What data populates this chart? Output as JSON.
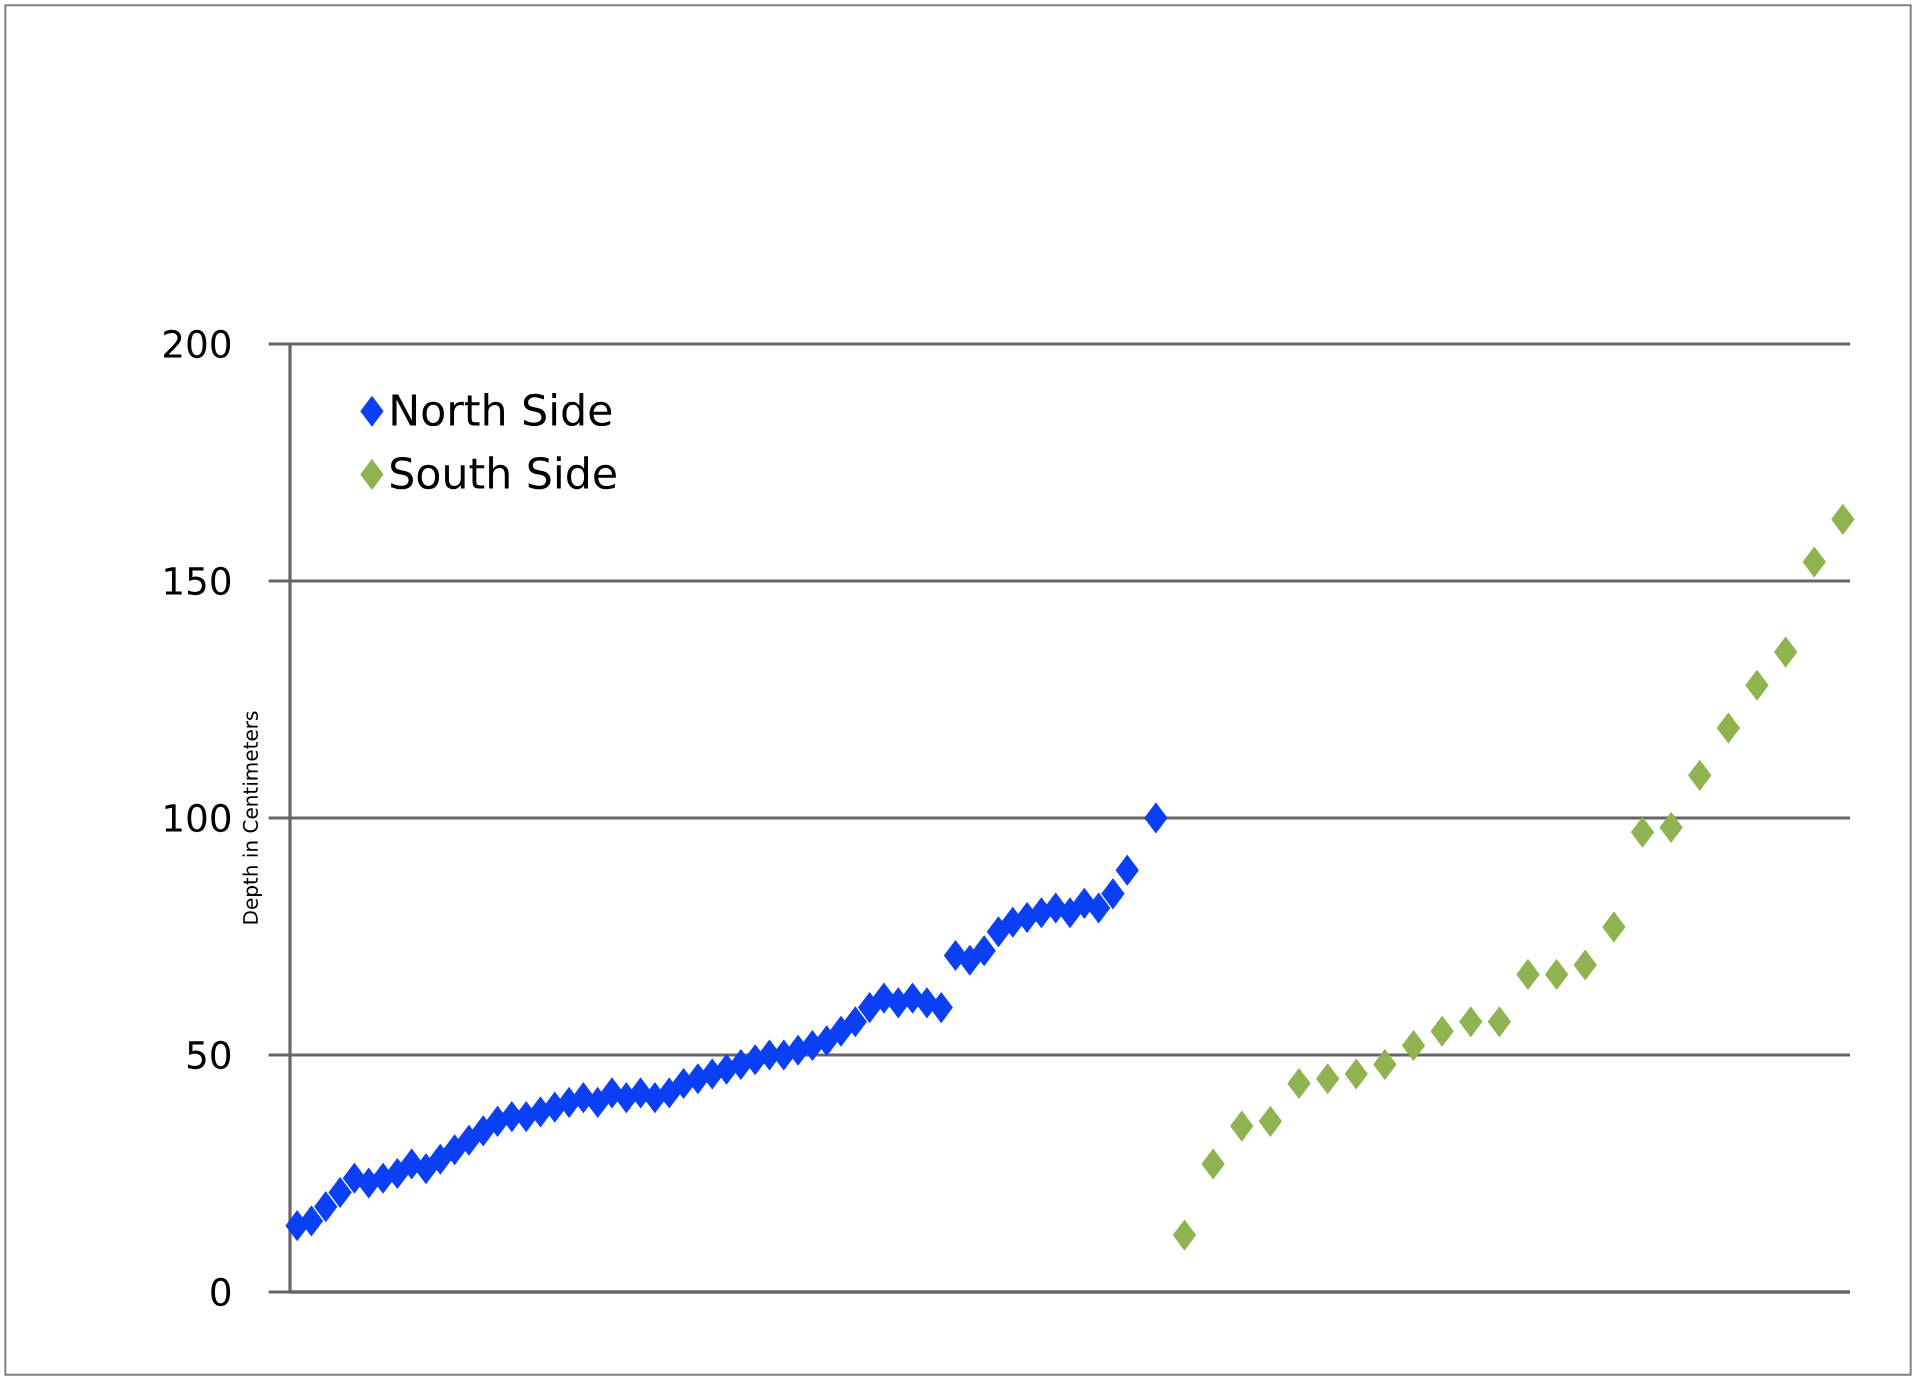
{
  "chart_data": {
    "type": "scatter",
    "ylabel": "Depth in Centimeters",
    "categories": [
      null,
      null,
      null,
      null,
      null,
      null,
      null,
      null,
      null,
      null,
      null,
      null,
      null,
      null,
      null,
      null,
      null,
      null,
      null,
      null,
      null,
      null,
      null,
      null,
      null,
      null,
      null,
      null,
      null,
      null,
      null,
      null,
      null,
      null,
      null,
      null,
      null,
      null,
      null,
      null,
      null,
      null,
      null,
      null,
      null,
      null,
      null,
      null,
      null,
      null,
      null,
      null,
      null,
      null,
      null,
      null,
      null,
      null,
      null,
      null,
      null,
      null,
      null,
      null,
      null,
      null,
      null,
      null,
      null,
      null,
      null,
      null,
      null,
      null,
      null,
      null,
      null,
      null,
      null,
      null,
      null,
      null,
      null,
      null,
      null,
      null,
      null,
      null,
      null,
      null,
      null,
      null,
      null,
      null,
      null,
      null,
      null,
      null,
      null,
      null,
      null,
      null,
      null,
      null,
      null,
      null,
      null,
      null,
      null
    ],
    "ylim": [
      0,
      200
    ],
    "yticks": [
      0,
      50,
      100,
      150,
      200
    ],
    "grid": "y",
    "legend": "top left",
    "marker": "diamond",
    "tick_labels": "y",
    "series": [
      {
        "name": "North Side",
        "color": "#0a3ff5",
        "values": [
          14,
          15,
          18,
          21,
          24,
          23,
          24,
          25,
          27,
          26,
          28,
          30,
          32,
          34,
          36,
          37,
          37,
          38,
          39,
          40,
          41,
          40,
          42,
          41,
          42,
          41,
          42,
          44,
          45,
          46,
          47,
          48,
          49,
          50,
          50,
          51,
          52,
          53,
          55,
          57,
          60,
          62,
          61,
          62,
          61,
          60,
          71,
          70,
          72,
          76,
          78,
          79,
          80,
          81,
          80,
          82,
          81,
          84,
          89,
          null,
          100,
          null,
          null,
          null,
          null,
          null,
          null,
          null,
          null,
          null,
          null,
          null,
          null,
          null,
          null,
          null,
          null,
          null,
          null,
          null,
          null,
          null,
          null,
          null,
          null,
          null,
          null,
          null,
          null,
          null,
          null,
          null,
          null,
          null,
          null,
          null,
          null,
          null,
          null,
          null,
          null,
          null,
          null,
          null,
          null,
          null,
          null,
          null,
          null
        ]
      },
      {
        "name": "South Side",
        "color": "#8fb350",
        "values": [
          null,
          null,
          null,
          null,
          null,
          null,
          null,
          null,
          null,
          null,
          null,
          null,
          null,
          null,
          null,
          null,
          null,
          null,
          null,
          null,
          null,
          null,
          null,
          null,
          null,
          null,
          null,
          null,
          null,
          null,
          null,
          null,
          null,
          null,
          null,
          null,
          null,
          null,
          null,
          null,
          null,
          null,
          null,
          null,
          null,
          null,
          null,
          null,
          null,
          null,
          null,
          null,
          null,
          null,
          null,
          null,
          null,
          null,
          null,
          null,
          null,
          null,
          12,
          null,
          27,
          null,
          35,
          null,
          36,
          null,
          44,
          null,
          45,
          null,
          46,
          null,
          48,
          null,
          52,
          null,
          55,
          null,
          57,
          null,
          57,
          null,
          67,
          null,
          67,
          null,
          69,
          null,
          77,
          null,
          97,
          null,
          98,
          null,
          109,
          null,
          119,
          null,
          128,
          null,
          135,
          null,
          154,
          null,
          163
        ]
      }
    ]
  }
}
